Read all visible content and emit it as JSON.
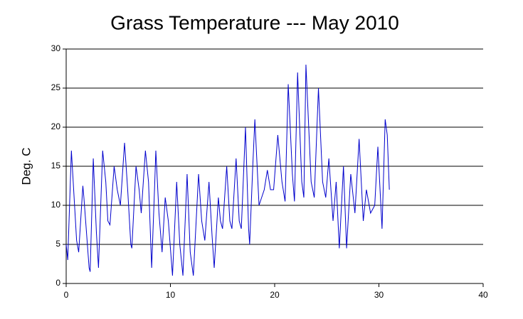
{
  "chart_data": {
    "type": "line",
    "title": "Grass Temperature --- May 2010",
    "y_label": "Deg. C",
    "x": [
      0,
      0.15,
      0.4,
      0.5,
      1.0,
      1.2,
      1.6,
      1.7,
      2.2,
      2.3,
      2.6,
      2.9,
      3.1,
      3.5,
      3.8,
      4.0,
      4.2,
      4.6,
      4.9,
      5.2,
      5.6,
      5.9,
      6.2,
      6.3,
      6.7,
      7.0,
      7.2,
      7.6,
      7.9,
      8.2,
      8.5,
      8.6,
      8.9,
      9.2,
      9.5,
      9.8,
      10.2,
      10.6,
      10.9,
      11.2,
      11.6,
      11.9,
      12.2,
      12.7,
      13.0,
      13.3,
      13.7,
      14.0,
      14.2,
      14.6,
      14.8,
      15.0,
      15.4,
      15.7,
      15.9,
      16.3,
      16.6,
      16.8,
      17.2,
      17.5,
      17.6,
      17.9,
      18.1,
      18.5,
      19.0,
      19.3,
      19.6,
      19.9,
      20.3,
      20.7,
      21.0,
      21.3,
      21.7,
      21.9,
      22.2,
      22.6,
      22.8,
      23.0,
      23.5,
      23.8,
      24.2,
      24.6,
      24.9,
      25.2,
      25.6,
      25.9,
      26.2,
      26.6,
      26.9,
      27.3,
      27.7,
      28.1,
      28.5,
      28.8,
      29.2,
      29.6,
      29.9,
      30.3,
      30.6,
      30.8,
      31.0
    ],
    "series": [
      {
        "name": "Grass Temperature",
        "color": "#0000cc",
        "values": [
          5,
          3,
          13,
          17,
          5.5,
          4,
          12.5,
          11,
          2,
          1.5,
          16,
          6.5,
          2,
          17,
          13,
          8,
          7.5,
          15,
          12,
          10,
          18,
          12,
          5,
          4.5,
          15,
          12,
          9,
          17,
          13,
          2,
          13,
          17,
          9,
          4,
          11,
          8,
          1,
          13,
          5,
          1,
          14,
          4,
          1,
          14,
          8,
          5.5,
          13,
          6,
          2,
          11,
          8,
          7,
          15,
          8,
          7,
          16,
          8,
          7,
          20,
          7,
          5,
          15,
          21,
          10,
          12,
          14.5,
          12,
          12,
          19,
          13,
          10.5,
          25.5,
          14,
          10.5,
          27,
          13,
          11,
          28,
          13,
          11,
          25,
          13,
          11,
          16,
          8,
          13,
          4.5,
          15,
          4.5,
          14,
          9,
          18.5,
          8,
          12,
          9,
          10,
          17.5,
          7,
          21,
          19,
          12
        ]
      }
    ],
    "xlim": [
      0,
      40
    ],
    "xticks": [
      0,
      10,
      20,
      30,
      40
    ],
    "ylim": [
      0,
      30
    ],
    "yticks": [
      0,
      5,
      10,
      15,
      20,
      25,
      30
    ],
    "grid": true
  }
}
